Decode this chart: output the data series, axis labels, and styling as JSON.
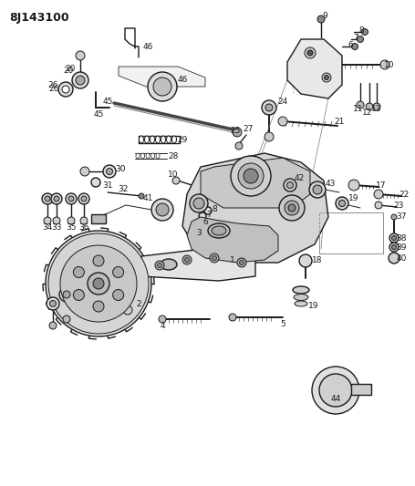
{
  "title": "8J143100",
  "bg_color": "#ffffff",
  "lc": "#1a1a1a",
  "title_fontsize": 9,
  "figsize": [
    4.55,
    5.33
  ],
  "dpi": 100,
  "aspect": "auto",
  "xlim": [
    0,
    455
  ],
  "ylim": [
    0,
    533
  ]
}
